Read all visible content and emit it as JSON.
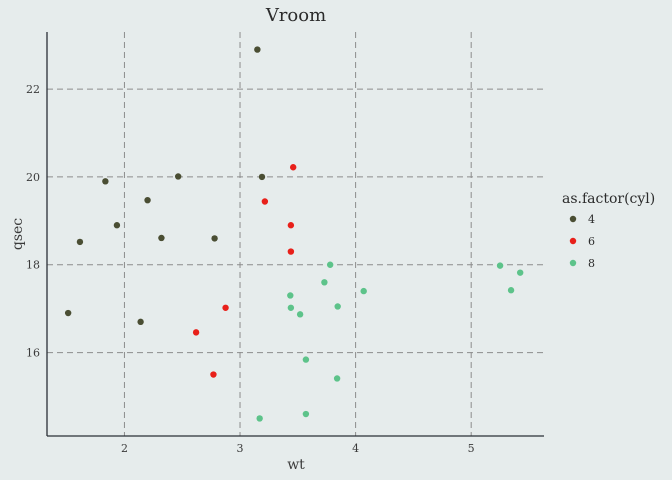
{
  "chart_data": {
    "type": "scatter",
    "title": "Vroom",
    "xlabel": "wt",
    "ylabel": "qsec",
    "xlim": [
      1.33,
      5.63
    ],
    "ylim": [
      14.1,
      23.3
    ],
    "xticks": [
      2,
      3,
      4,
      5
    ],
    "yticks": [
      16,
      18,
      20,
      22
    ],
    "grid": true,
    "legend": {
      "title": "as.factor(cyl)",
      "position": "right"
    },
    "series": [
      {
        "name": "4",
        "color": "#4A4E33",
        "points": [
          [
            2.32,
            18.61
          ],
          [
            3.19,
            20.0
          ],
          [
            3.15,
            22.9
          ],
          [
            2.2,
            19.47
          ],
          [
            1.615,
            18.52
          ],
          [
            1.835,
            19.9
          ],
          [
            2.465,
            20.01
          ],
          [
            1.935,
            18.9
          ],
          [
            2.14,
            16.7
          ],
          [
            1.513,
            16.9
          ],
          [
            2.78,
            18.6
          ]
        ]
      },
      {
        "name": "6",
        "color": "#E8201A",
        "points": [
          [
            2.62,
            16.46
          ],
          [
            2.875,
            17.02
          ],
          [
            3.215,
            19.44
          ],
          [
            3.46,
            20.22
          ],
          [
            3.44,
            18.3
          ],
          [
            3.44,
            18.9
          ],
          [
            2.77,
            15.5
          ]
        ]
      },
      {
        "name": "8",
        "color": "#5DC38A",
        "points": [
          [
            3.44,
            17.02
          ],
          [
            3.57,
            15.84
          ],
          [
            4.07,
            17.4
          ],
          [
            3.73,
            17.6
          ],
          [
            3.78,
            18.0
          ],
          [
            5.25,
            17.98
          ],
          [
            5.424,
            17.82
          ],
          [
            5.345,
            17.42
          ],
          [
            3.52,
            16.87
          ],
          [
            3.435,
            17.3
          ],
          [
            3.84,
            15.41
          ],
          [
            3.845,
            17.05
          ],
          [
            3.17,
            14.5
          ],
          [
            3.57,
            14.6
          ]
        ]
      }
    ]
  }
}
